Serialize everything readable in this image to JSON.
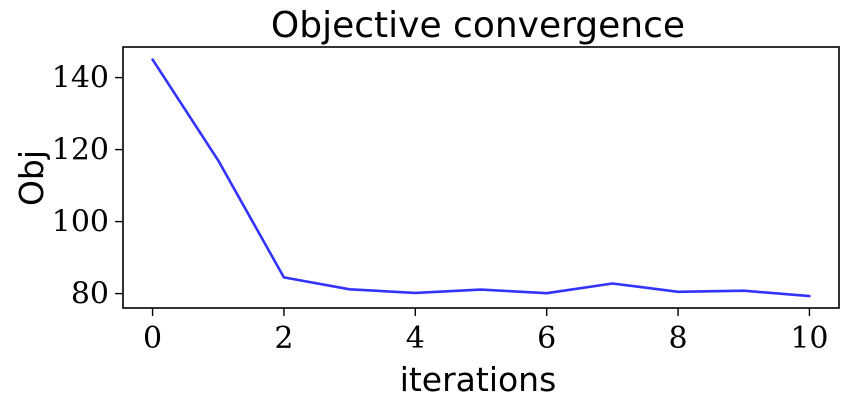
{
  "chart_data": {
    "type": "line",
    "title": "Objective convergence",
    "xlabel": "iterations",
    "ylabel": "Obj",
    "xlim": [
      -0.45,
      10.45
    ],
    "ylim": [
      76,
      148.5
    ],
    "xticks": [
      "0",
      "2",
      "4",
      "6",
      "8",
      "10"
    ],
    "xtick_values": [
      0,
      2,
      4,
      6,
      8,
      10
    ],
    "yticks": [
      "80",
      "100",
      "120",
      "140"
    ],
    "ytick_values": [
      80,
      100,
      120,
      140
    ],
    "grid": false,
    "series": [
      {
        "color": "#3333ff",
        "x": [
          0,
          1,
          2,
          3,
          4,
          5,
          6,
          7,
          8,
          9,
          10
        ],
        "y": [
          145,
          117,
          84.5,
          81.2,
          80.2,
          81.1,
          80.1,
          82.8,
          80.5,
          80.8,
          79.3
        ]
      }
    ]
  }
}
